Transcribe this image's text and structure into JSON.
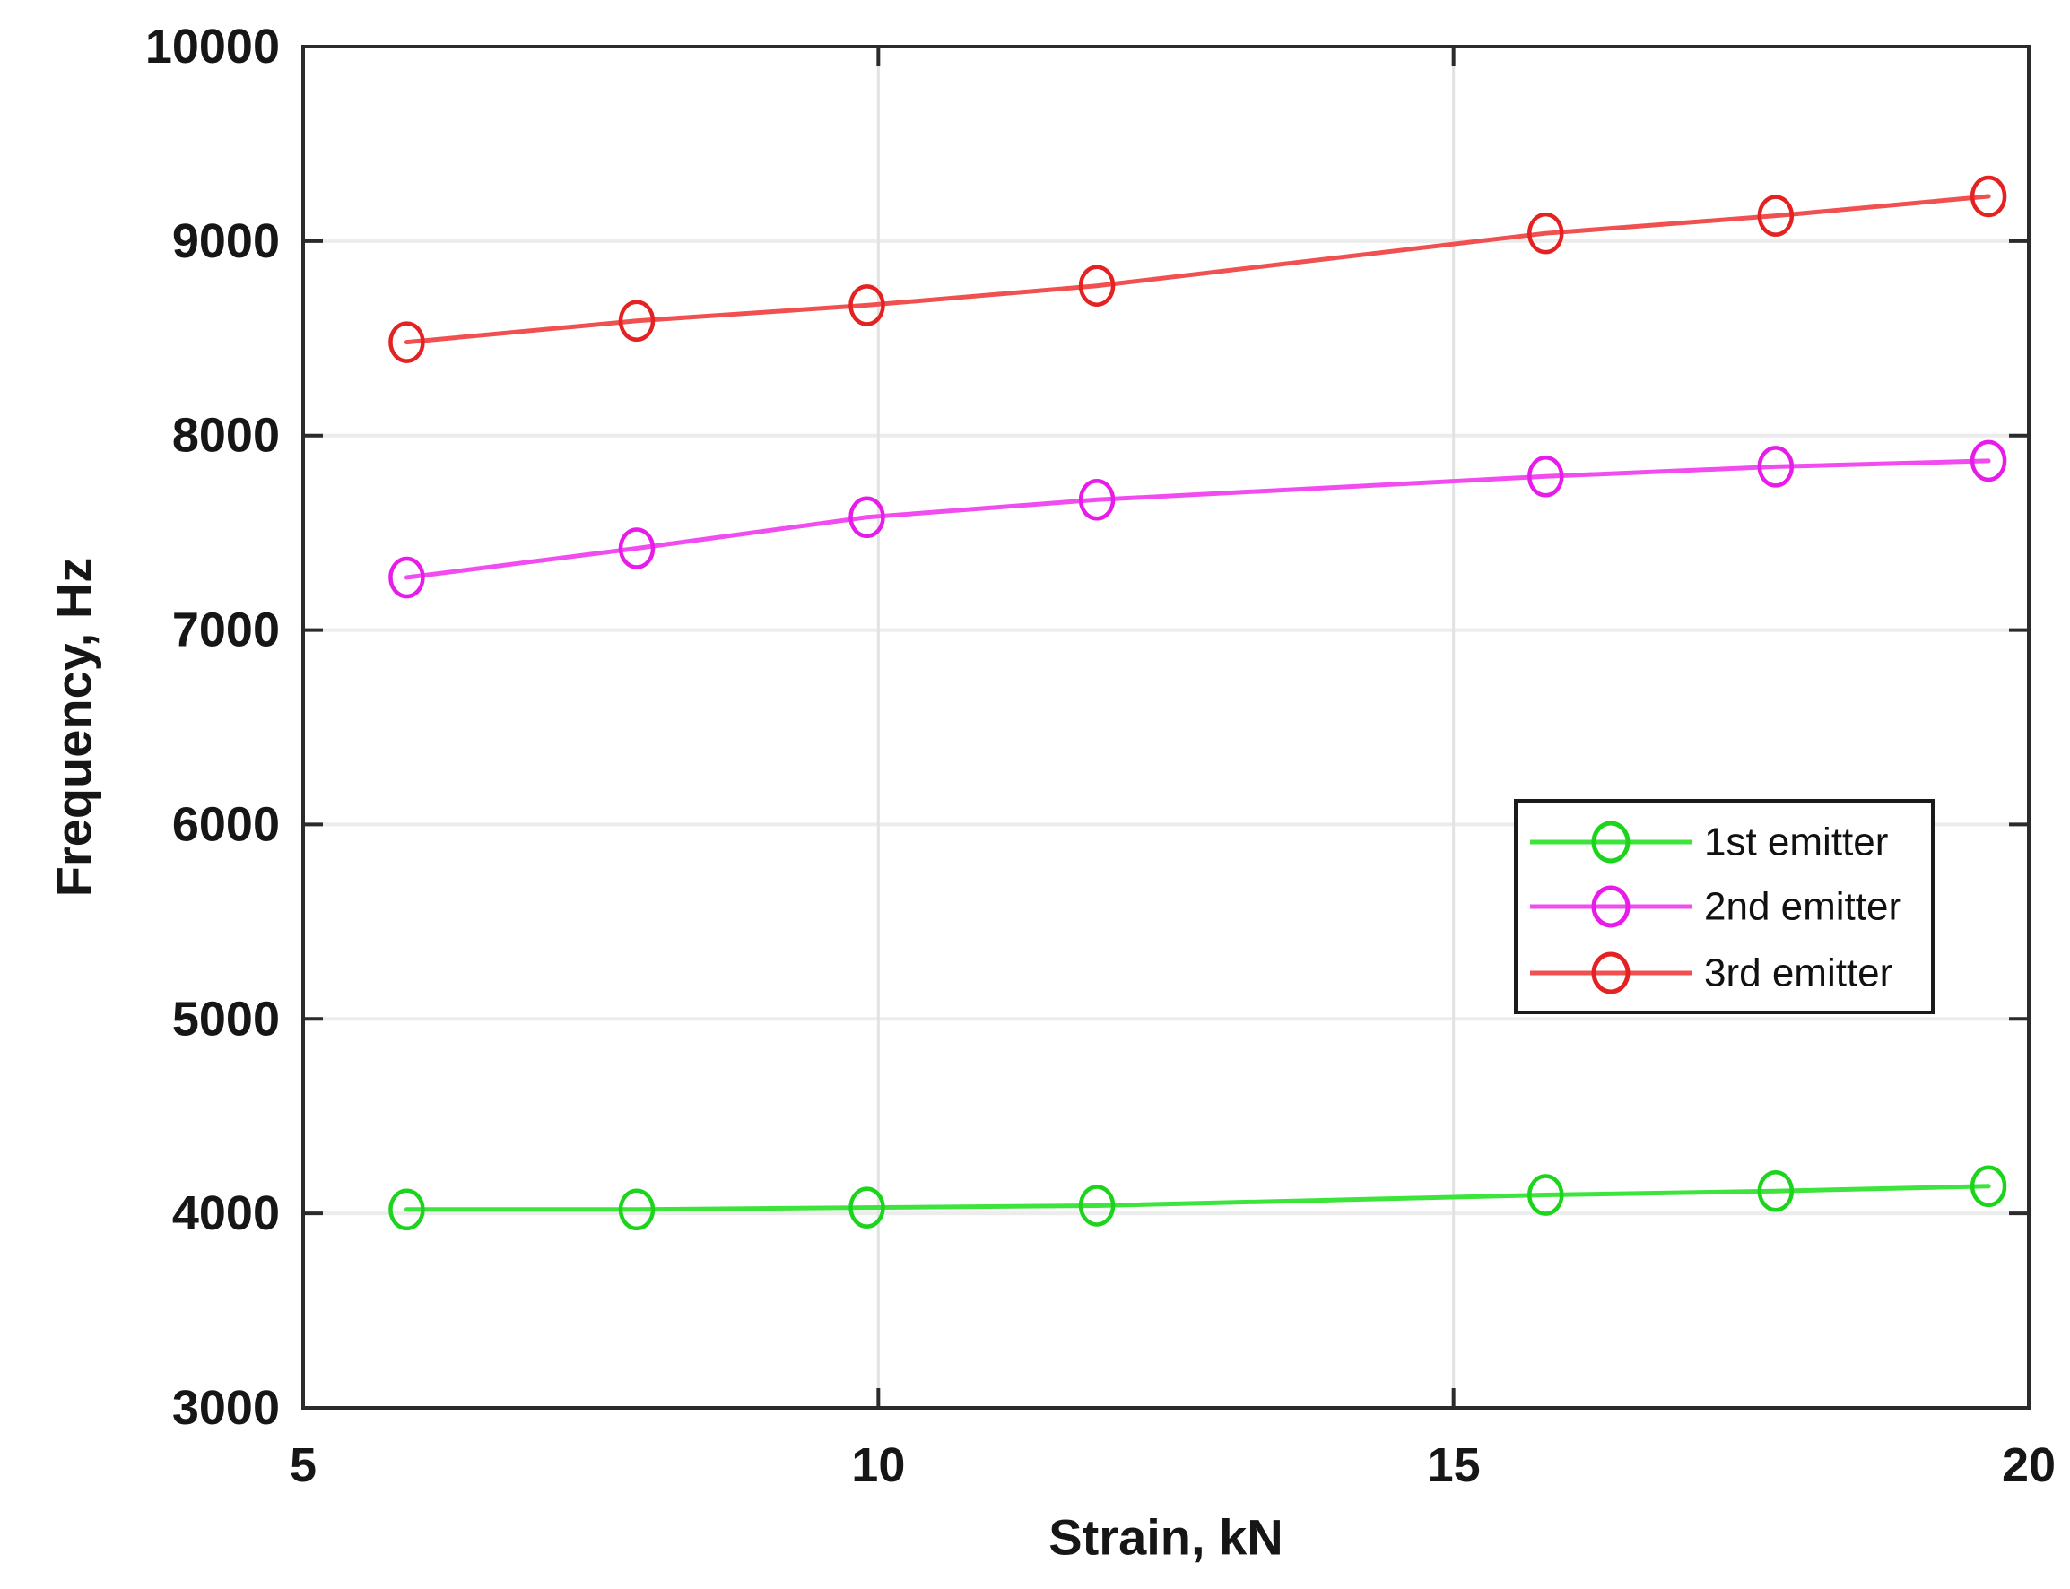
{
  "figure": {
    "background": "#ffffff",
    "axis_color": "#2b2b2b",
    "grid_color_h": "#ececec",
    "grid_color_v": "#e2e2e2",
    "tick_color": "#2b2b2b"
  },
  "chart_data": {
    "type": "line",
    "title": "",
    "xlabel": "Strain, kN",
    "ylabel": "Frequency, Hz",
    "xlim": [
      5,
      20
    ],
    "ylim": [
      3000,
      10000
    ],
    "xticks": [
      5,
      10,
      15,
      20
    ],
    "yticks": [
      3000,
      4000,
      5000,
      6000,
      7000,
      8000,
      9000,
      10000
    ],
    "grid": true,
    "legend_position": "middle-right",
    "x": [
      5.9,
      7.9,
      9.9,
      11.9,
      15.8,
      17.8,
      19.65
    ],
    "series": [
      {
        "name": "1st emitter",
        "marker": "circle",
        "color": "#1bd41b",
        "line_color": "#3ce43c",
        "values": [
          4020,
          4020,
          4030,
          4040,
          4095,
          4115,
          4140
        ]
      },
      {
        "name": "2nd emitter",
        "marker": "circle",
        "color": "#e81ce8",
        "line_color": "#f04cf0",
        "values": [
          7270,
          7420,
          7580,
          7670,
          7790,
          7840,
          7870
        ]
      },
      {
        "name": "3rd emitter",
        "marker": "circle",
        "color": "#e42222",
        "line_color": "#f05050",
        "values": [
          8480,
          8590,
          8670,
          8770,
          9040,
          9130,
          9230
        ]
      }
    ]
  }
}
